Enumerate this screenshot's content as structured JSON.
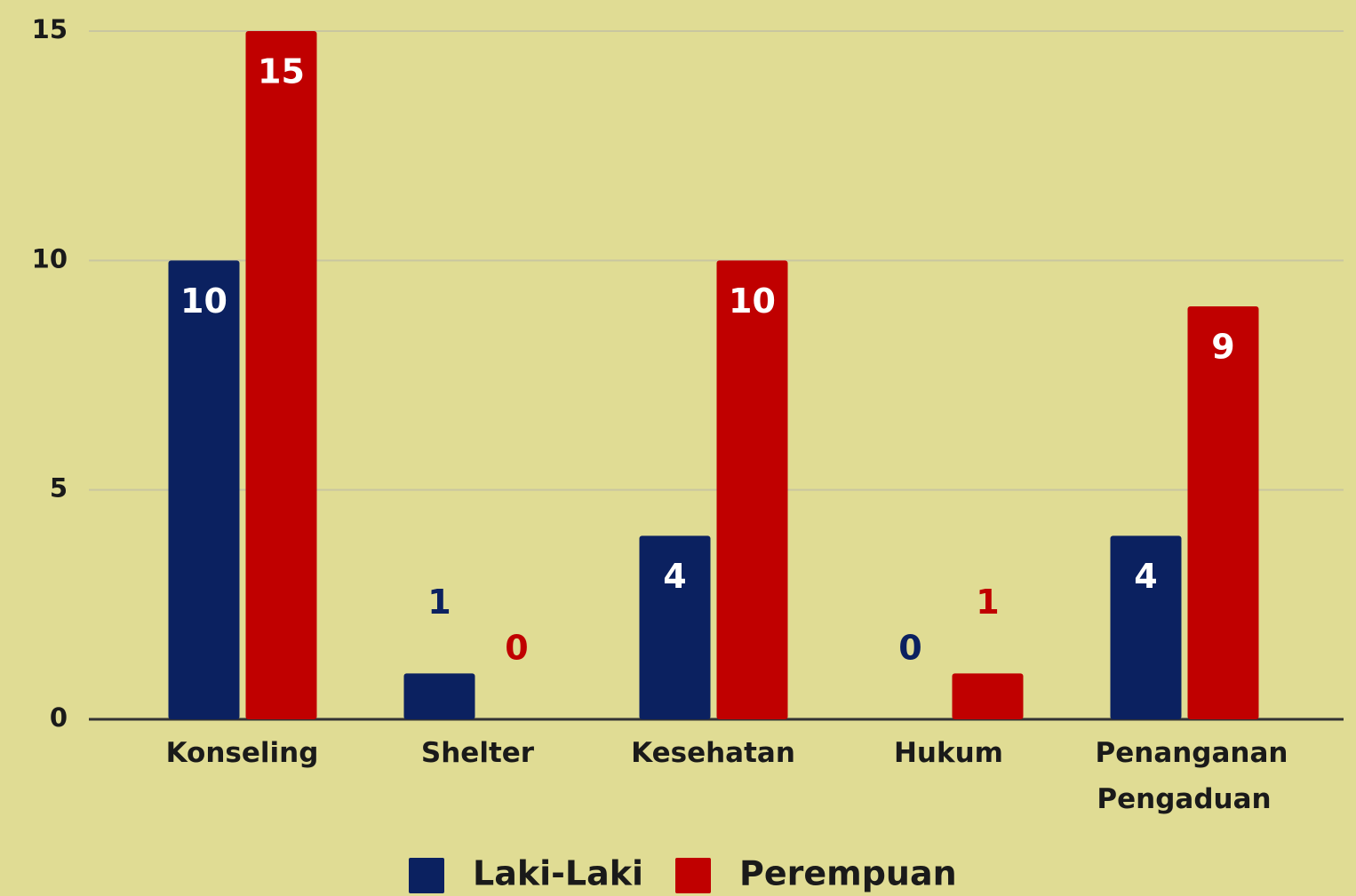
{
  "chart_data": {
    "type": "bar",
    "categories": [
      "Konseling",
      "Shelter",
      "Kesehatan",
      "Hukum",
      "Penanganan Pengaduan"
    ],
    "series": [
      {
        "name": "Laki-Laki",
        "color": "#0b2160",
        "values": [
          10,
          1,
          4,
          0,
          4
        ]
      },
      {
        "name": "Perempuan",
        "color": "#c00000",
        "values": [
          15,
          0,
          10,
          1,
          9
        ]
      }
    ],
    "ylim": [
      0,
      15
    ],
    "yticks": [
      0,
      5,
      10,
      15
    ],
    "grid": true,
    "legend": "bottom"
  }
}
